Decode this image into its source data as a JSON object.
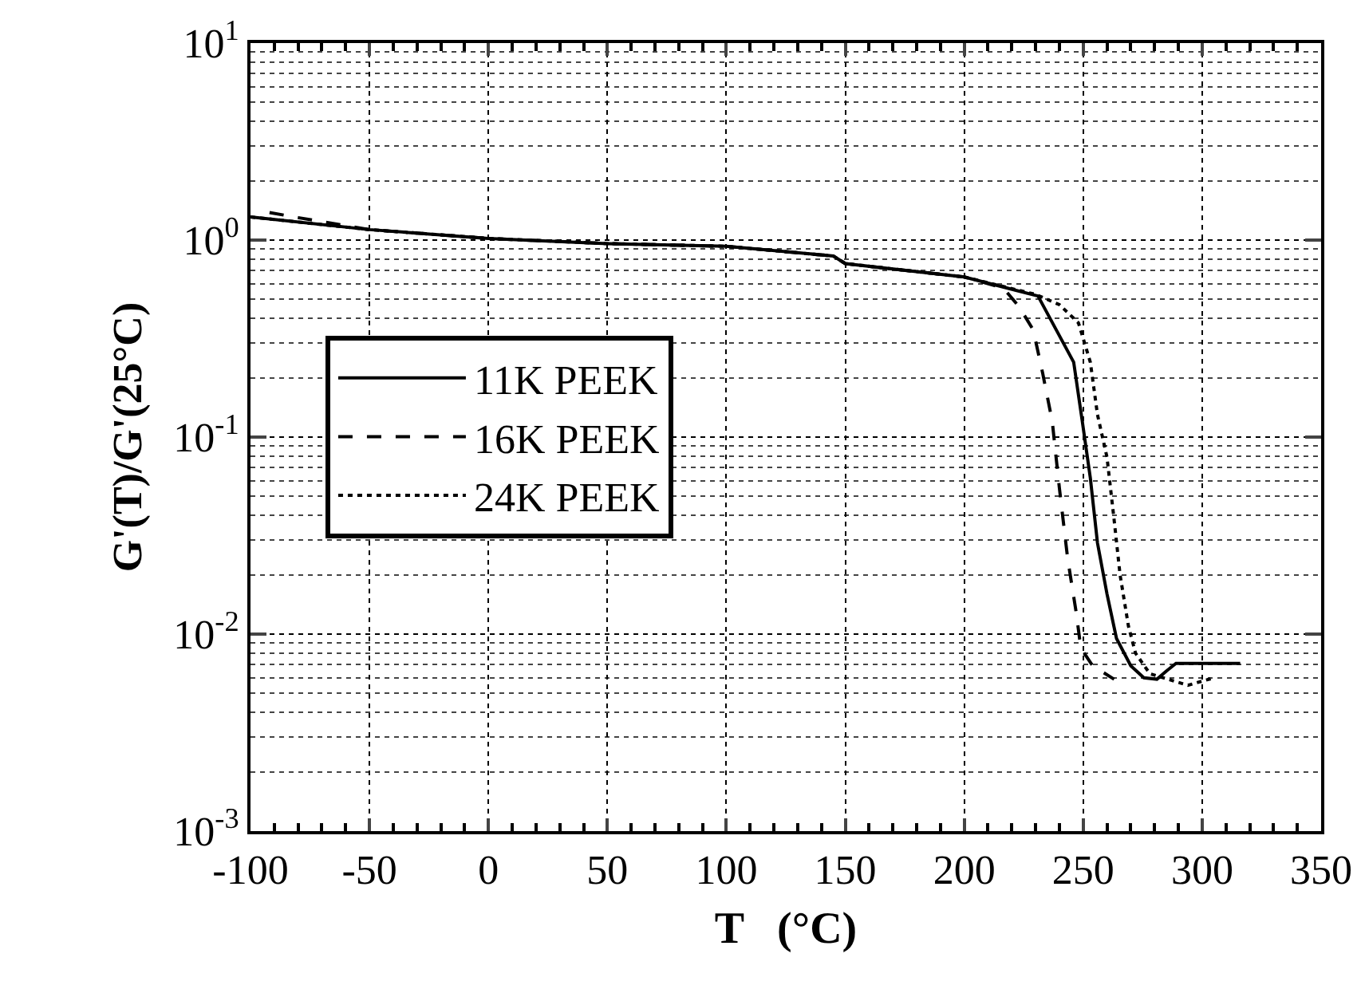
{
  "chart_data": {
    "type": "line",
    "xlabel": "T   (°C)",
    "ylabel": "G'(T)/G'(25°C)",
    "log": "y",
    "grid": true,
    "legend": "left",
    "xlim": [
      -100,
      350
    ],
    "xticks": [
      -100,
      -50,
      0,
      50,
      100,
      150,
      200,
      250,
      300,
      350
    ],
    "ylim": [
      0.001,
      10
    ],
    "yticks": [
      {
        "value": 0.001,
        "label": "10$^{-3}$"
      },
      {
        "value": 0.01,
        "label": "10$^{-2}$"
      },
      {
        "value": 0.1,
        "label": "10$^{-1}$"
      },
      {
        "value": 1,
        "label": "10$^{0}$"
      },
      {
        "value": 10,
        "label": "10$^{1}$"
      }
    ],
    "series": [
      {
        "name": "11K PEEK",
        "color": "#000000",
        "line_style": "solid",
        "x": [
          -100,
          -50,
          0,
          50,
          100,
          145,
          150,
          200,
          231,
          246,
          249.5,
          253,
          256,
          260,
          264,
          270,
          275.5,
          281,
          285,
          289,
          316
        ],
        "values": [
          1.31,
          1.13,
          1.02,
          0.96,
          0.93,
          0.83,
          0.76,
          0.65,
          0.52,
          0.24,
          0.123,
          0.062,
          0.029,
          0.016,
          0.0095,
          0.0069,
          0.006,
          0.0059,
          0.0065,
          0.0071,
          0.0071
        ]
      },
      {
        "name": "16K PEEK",
        "color": "#000000",
        "line_style": "dashed",
        "x": [
          -92,
          -80,
          -50,
          0,
          50,
          100,
          145,
          150,
          200,
          216.5,
          223,
          229,
          233,
          237,
          240,
          243.5,
          247,
          249,
          254,
          263
        ],
        "values": [
          1.38,
          1.3,
          1.13,
          1.02,
          0.96,
          0.93,
          0.83,
          0.76,
          0.65,
          0.57,
          0.46,
          0.35,
          0.21,
          0.12,
          0.055,
          0.024,
          0.013,
          0.0085,
          0.0069,
          0.0059
        ]
      },
      {
        "name": "24K PEEK",
        "color": "#000000",
        "line_style": "dotted",
        "x": [
          -100,
          -50,
          0,
          50,
          100,
          145,
          150,
          200,
          230,
          240,
          248,
          253,
          256,
          260,
          263,
          265.5,
          269,
          272,
          278,
          294,
          305
        ],
        "values": [
          1.31,
          1.13,
          1.02,
          0.96,
          0.93,
          0.83,
          0.76,
          0.65,
          0.53,
          0.47,
          0.38,
          0.24,
          0.13,
          0.079,
          0.038,
          0.02,
          0.011,
          0.008,
          0.0063,
          0.0055,
          0.006
        ]
      }
    ]
  }
}
